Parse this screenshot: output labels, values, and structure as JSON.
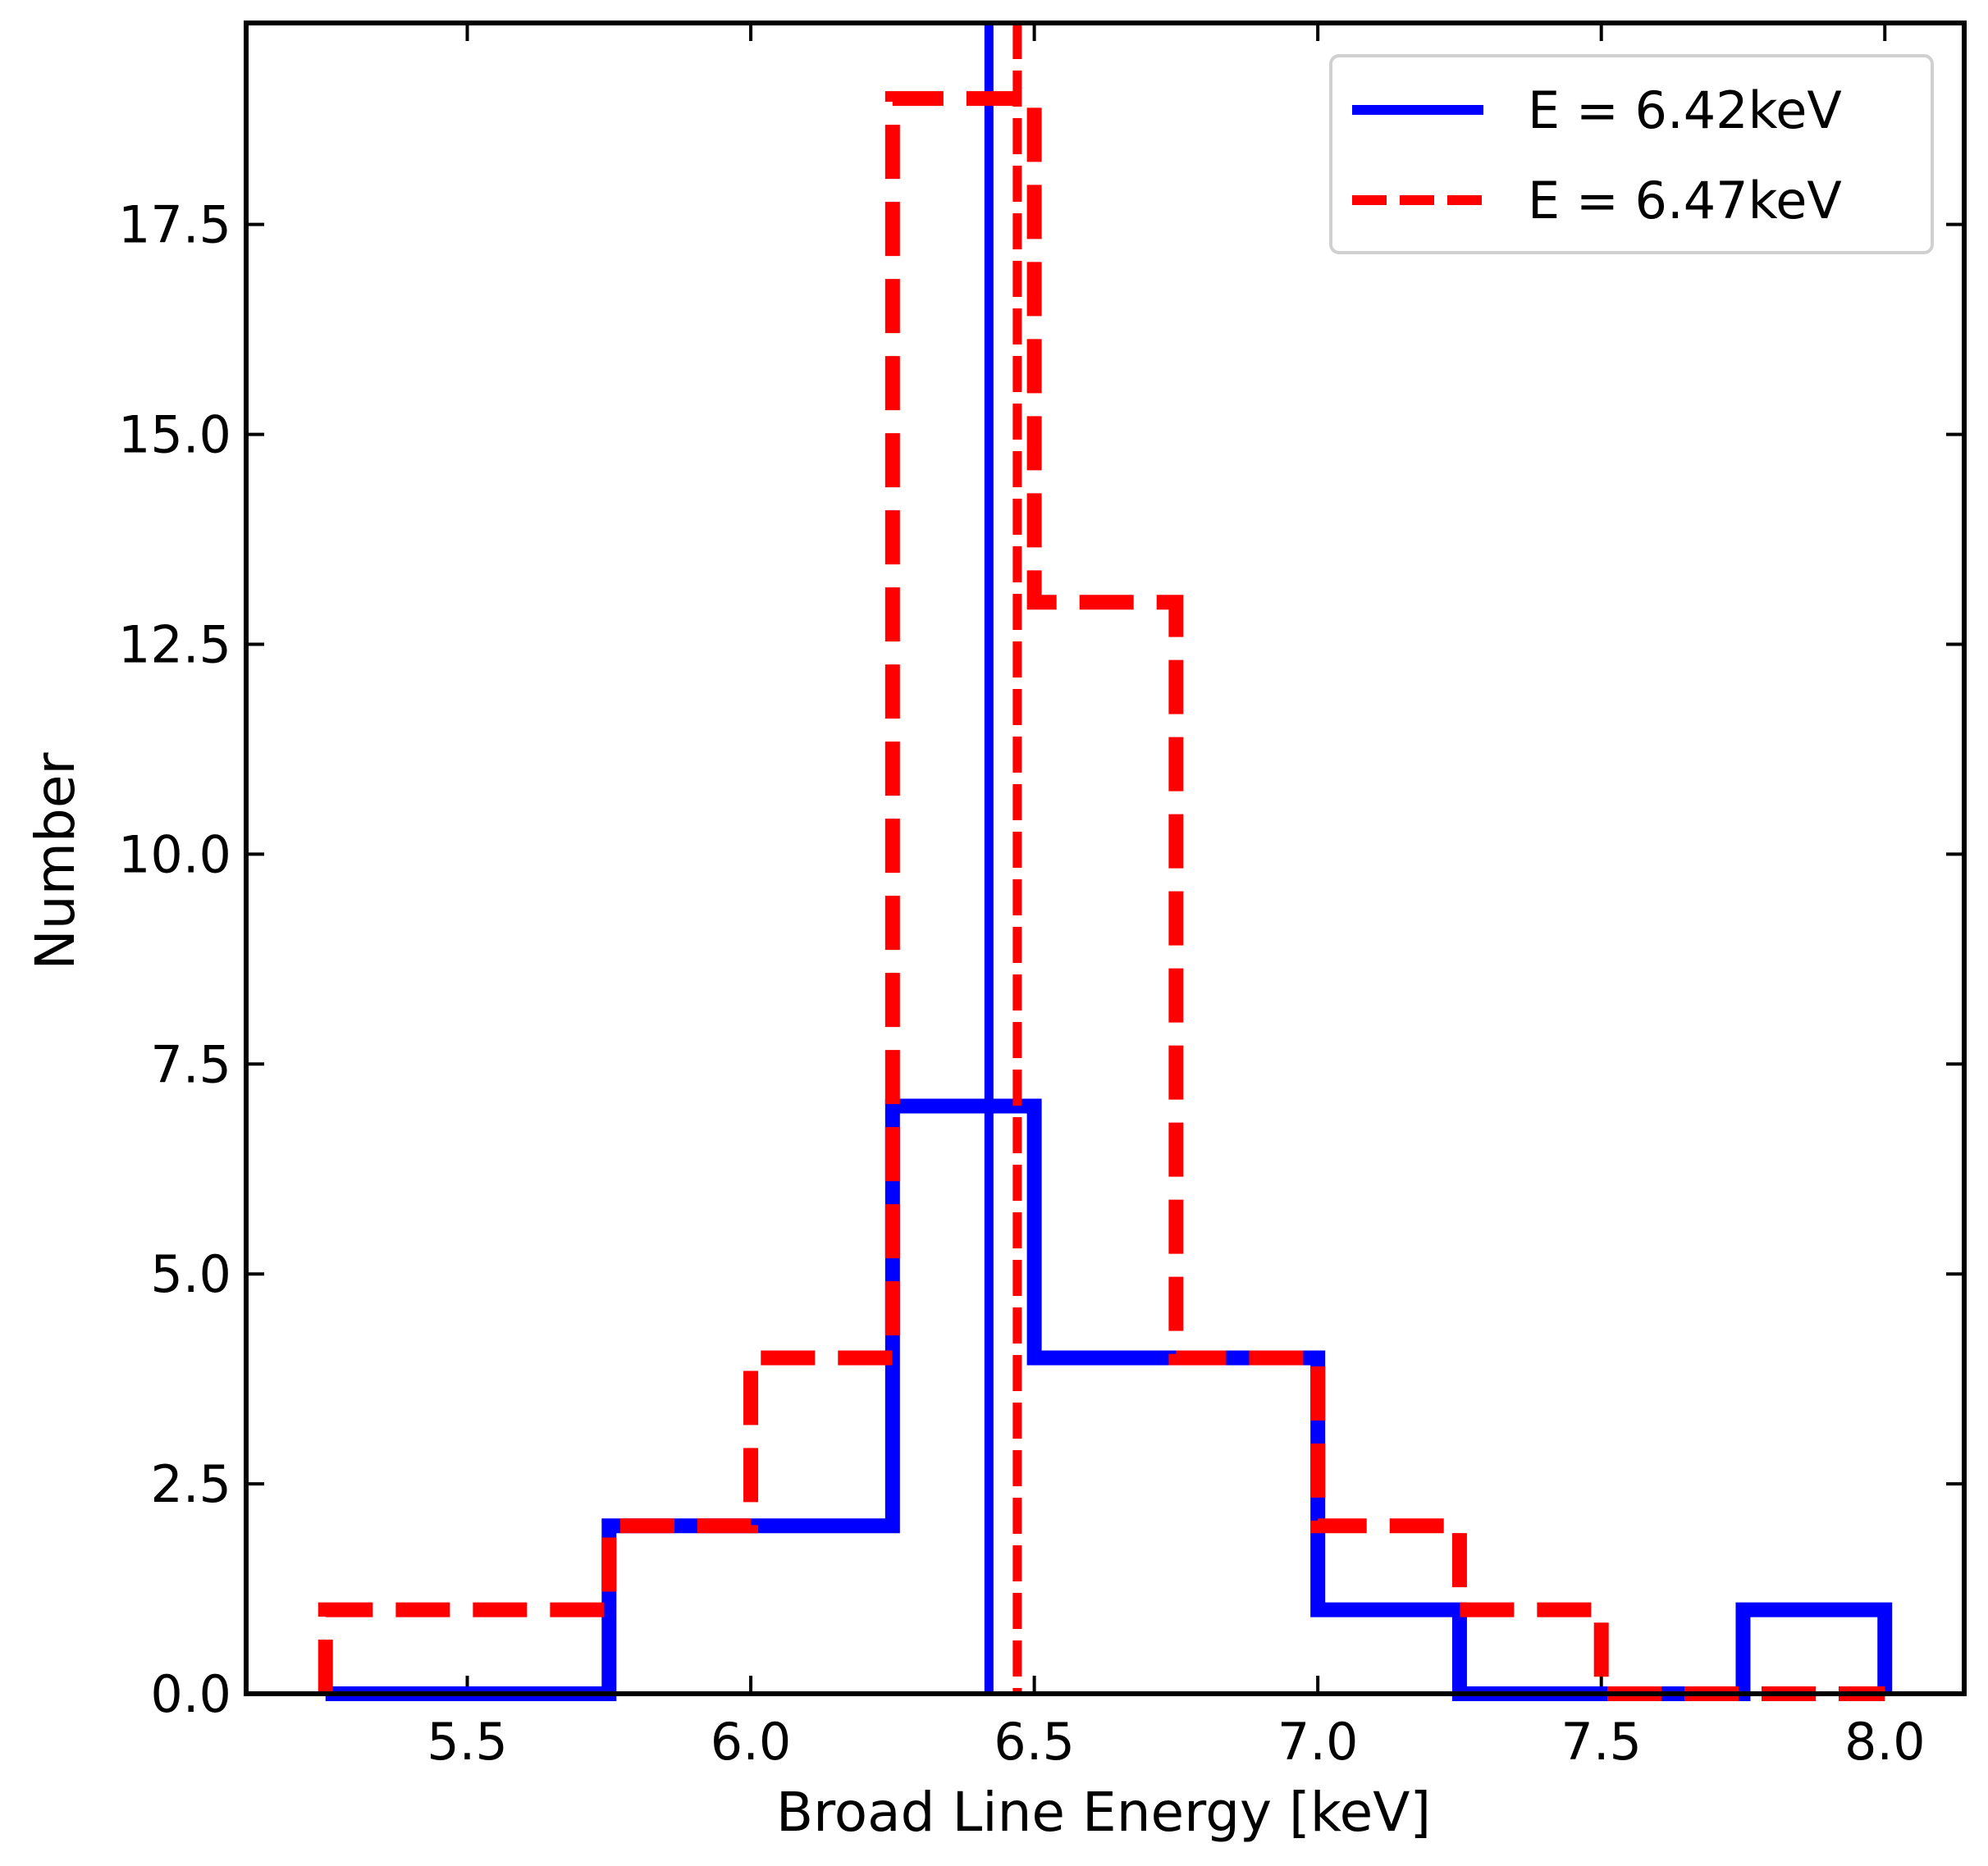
{
  "chart_data": {
    "type": "histogram",
    "title": "",
    "xlabel": "Broad Line Energy [keV]",
    "ylabel": "Number",
    "xlim": [
      5.11,
      8.14
    ],
    "ylim": [
      0,
      19.9
    ],
    "xticks": [
      5.5,
      6.0,
      6.5,
      7.0,
      7.5,
      8.0
    ],
    "xtick_labels": [
      "5.5",
      "6.0",
      "6.5",
      "7.0",
      "7.5",
      "8.0"
    ],
    "yticks": [
      0,
      2.5,
      5,
      7.5,
      10,
      12.5,
      15,
      17.5
    ],
    "ytick_labels": [
      "0.0",
      "2.5",
      "5.0",
      "7.5",
      "10.0",
      "12.5",
      "15.0",
      "17.5"
    ],
    "bin_edges": [
      5.25,
      5.5,
      5.75,
      6.0,
      6.25,
      6.5,
      6.75,
      7.0,
      7.25,
      7.5,
      7.75,
      8.0
    ],
    "series": [
      {
        "name": "E = 6.42keV",
        "color": "#0000ff",
        "style": "solid",
        "counts": [
          0,
          0,
          2,
          2,
          7,
          4,
          4,
          1,
          0,
          0,
          1
        ],
        "marker_line": 6.42
      },
      {
        "name": "E = 6.47keV",
        "color": "#ff0000",
        "style": "dashed",
        "counts": [
          1,
          1,
          2,
          4,
          19,
          13,
          4,
          2,
          1,
          0,
          0
        ],
        "marker_line": 6.47
      }
    ],
    "legend": {
      "position": "top-right",
      "entries": [
        "E = 6.42keV",
        "E = 6.47keV"
      ]
    },
    "grid": false
  }
}
